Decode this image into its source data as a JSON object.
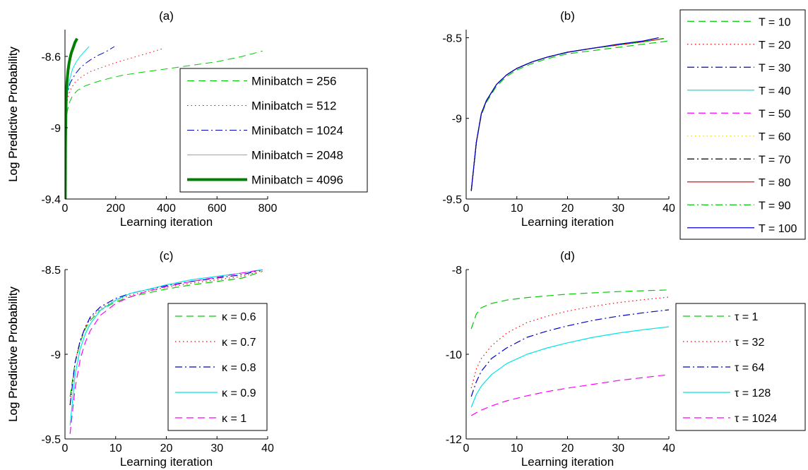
{
  "chart_data": [
    {
      "panel": "(a)",
      "type": "line",
      "title": "(a)",
      "xlabel": "Learning iteration",
      "ylabel": "Log Predictive Probability",
      "xlim": [
        0,
        800
      ],
      "ylim": [
        -9.4,
        -8.45
      ],
      "xticks": [
        0,
        200,
        400,
        600,
        800
      ],
      "yticks": [
        -9.4,
        -9,
        -8.6
      ],
      "ytick_labels": [
        "-9.4",
        "-9",
        "-8.6"
      ],
      "grid": false,
      "legend_position": "inside-right",
      "series": [
        {
          "name": "Minibatch = 256",
          "color": "#00cc00",
          "style": "dashed",
          "width": 1,
          "x": [
            1,
            5,
            10,
            20,
            30,
            50,
            80,
            120,
            170,
            230,
            300,
            400,
            500,
            600,
            700,
            780
          ],
          "y": [
            -9.05,
            -8.95,
            -8.9,
            -8.85,
            -8.82,
            -8.79,
            -8.765,
            -8.745,
            -8.725,
            -8.705,
            -8.69,
            -8.67,
            -8.65,
            -8.63,
            -8.6,
            -8.57
          ]
        },
        {
          "name": "Minibatch = 512",
          "color": "#ff0000",
          "style": "dotted",
          "width": 1,
          "x": [
            1,
            5,
            10,
            20,
            40,
            70,
            100,
            150,
            200,
            260,
            320,
            390
          ],
          "y": [
            -9.0,
            -8.9,
            -8.84,
            -8.79,
            -8.745,
            -8.71,
            -8.685,
            -8.66,
            -8.635,
            -8.61,
            -8.585,
            -8.555
          ]
        },
        {
          "name": "Minibatch = 1024",
          "color": "#0000cc",
          "style": "dashdot",
          "width": 1,
          "x": [
            1,
            5,
            10,
            20,
            40,
            60,
            80,
            100,
            130,
            160,
            195
          ],
          "y": [
            -9.0,
            -8.88,
            -8.81,
            -8.75,
            -8.7,
            -8.665,
            -8.64,
            -8.62,
            -8.595,
            -8.575,
            -8.545
          ]
        },
        {
          "name": "Minibatch = 2048",
          "color": "#00e5e5",
          "style": "solid",
          "width": 1,
          "x": [
            1,
            3,
            6,
            10,
            20,
            30,
            45,
            60,
            75,
            95
          ],
          "y": [
            -9.2,
            -9.0,
            -8.88,
            -8.8,
            -8.72,
            -8.67,
            -8.63,
            -8.6,
            -8.575,
            -8.545
          ]
        },
        {
          "name": "Minibatch = 4096",
          "color": "#008000",
          "style": "solid",
          "width": 4,
          "x": [
            1,
            2,
            3,
            5,
            8,
            12,
            16,
            20,
            25,
            30,
            35,
            40,
            48
          ],
          "y": [
            -9.4,
            -9.1,
            -8.95,
            -8.82,
            -8.74,
            -8.68,
            -8.64,
            -8.61,
            -8.58,
            -8.56,
            -8.54,
            -8.52,
            -8.5
          ]
        }
      ]
    },
    {
      "panel": "(b)",
      "type": "line",
      "title": "(b)",
      "xlabel": "Learning iteration",
      "ylabel": "Log Predictive Probability",
      "xlim": [
        0,
        40
      ],
      "ylim": [
        -9.5,
        -8.45
      ],
      "xticks": [
        0,
        10,
        20,
        30,
        40
      ],
      "yticks": [
        -9.5,
        -9,
        -8.5
      ],
      "ytick_labels": [
        "-9.5",
        "-9",
        "-8.5"
      ],
      "grid": false,
      "legend_position": "outside-right",
      "series": [
        {
          "name": "T = 10",
          "color": "#00cc00",
          "style": "dashed",
          "x": [
            1,
            2,
            3,
            4,
            6,
            8,
            10,
            13,
            16,
            20,
            25,
            30,
            35,
            40
          ],
          "y": [
            -9.45,
            -9.15,
            -8.98,
            -8.9,
            -8.8,
            -8.74,
            -8.7,
            -8.66,
            -8.63,
            -8.6,
            -8.58,
            -8.56,
            -8.54,
            -8.52
          ]
        },
        {
          "name": "T = 20",
          "color": "#ff0000",
          "style": "dotted",
          "x": [
            1,
            2,
            3,
            4,
            6,
            8,
            10,
            13,
            16,
            20,
            25,
            30,
            35,
            39
          ],
          "y": [
            -9.45,
            -9.15,
            -8.97,
            -8.89,
            -8.79,
            -8.73,
            -8.69,
            -8.65,
            -8.62,
            -8.59,
            -8.565,
            -8.545,
            -8.525,
            -8.505
          ]
        },
        {
          "name": "T = 30",
          "color": "#0000cc",
          "style": "dashdot",
          "x": [
            1,
            2,
            3,
            4,
            6,
            8,
            10,
            13,
            16,
            20,
            25,
            30,
            35,
            39
          ],
          "y": [
            -9.45,
            -9.15,
            -8.97,
            -8.89,
            -8.79,
            -8.73,
            -8.69,
            -8.65,
            -8.62,
            -8.59,
            -8.565,
            -8.545,
            -8.525,
            -8.505
          ]
        },
        {
          "name": "T = 40",
          "color": "#00e5e5",
          "style": "solid",
          "x": [
            1,
            2,
            3,
            4,
            6,
            8,
            10,
            13,
            16,
            20,
            25,
            30,
            35,
            39
          ],
          "y": [
            -9.45,
            -9.15,
            -8.97,
            -8.89,
            -8.79,
            -8.73,
            -8.69,
            -8.65,
            -8.62,
            -8.59,
            -8.565,
            -8.545,
            -8.525,
            -8.505
          ]
        },
        {
          "name": "T = 50",
          "color": "#ff00ff",
          "style": "dashed",
          "x": [
            1,
            2,
            3,
            4,
            6,
            8,
            10,
            13,
            16,
            20,
            25,
            30,
            35,
            39
          ],
          "y": [
            -9.45,
            -9.15,
            -8.97,
            -8.89,
            -8.79,
            -8.73,
            -8.69,
            -8.65,
            -8.62,
            -8.59,
            -8.565,
            -8.545,
            -8.525,
            -8.505
          ]
        },
        {
          "name": "T = 60",
          "color": "#e5e500",
          "style": "dotted",
          "x": [
            1,
            2,
            3,
            4,
            6,
            8,
            10,
            13,
            16,
            20,
            25,
            30,
            35,
            39
          ],
          "y": [
            -9.45,
            -9.15,
            -8.97,
            -8.89,
            -8.79,
            -8.73,
            -8.69,
            -8.65,
            -8.62,
            -8.59,
            -8.565,
            -8.545,
            -8.525,
            -8.505
          ]
        },
        {
          "name": "T = 70",
          "color": "#000000",
          "style": "dashdot",
          "x": [
            1,
            2,
            3,
            4,
            6,
            8,
            10,
            13,
            16,
            20,
            25,
            30,
            35,
            39
          ],
          "y": [
            -9.45,
            -9.15,
            -8.97,
            -8.89,
            -8.79,
            -8.73,
            -8.69,
            -8.65,
            -8.62,
            -8.59,
            -8.565,
            -8.545,
            -8.525,
            -8.505
          ]
        },
        {
          "name": "T = 80",
          "color": "#ff0000",
          "style": "solid",
          "x": [
            1,
            2,
            3,
            4,
            6,
            8,
            10,
            13,
            16,
            20,
            25,
            30,
            35,
            39
          ],
          "y": [
            -9.45,
            -9.15,
            -8.97,
            -8.89,
            -8.79,
            -8.73,
            -8.69,
            -8.65,
            -8.62,
            -8.59,
            -8.565,
            -8.545,
            -8.525,
            -8.505
          ]
        },
        {
          "name": "T = 90",
          "color": "#00cc00",
          "style": "dashdot",
          "x": [
            1,
            2,
            3,
            4,
            6,
            8,
            10,
            13,
            16,
            20,
            25,
            30,
            35,
            39
          ],
          "y": [
            -9.45,
            -9.15,
            -8.97,
            -8.89,
            -8.79,
            -8.73,
            -8.69,
            -8.65,
            -8.62,
            -8.59,
            -8.565,
            -8.545,
            -8.525,
            -8.505
          ]
        },
        {
          "name": "T = 100",
          "color": "#0000cc",
          "style": "solid",
          "x": [
            1,
            2,
            3,
            4,
            6,
            8,
            10,
            13,
            16,
            20,
            25,
            30,
            35,
            38
          ],
          "y": [
            -9.45,
            -9.15,
            -8.97,
            -8.89,
            -8.79,
            -8.73,
            -8.69,
            -8.65,
            -8.62,
            -8.59,
            -8.565,
            -8.54,
            -8.52,
            -8.5
          ]
        }
      ]
    },
    {
      "panel": "(c)",
      "type": "line",
      "title": "(c)",
      "xlabel": "Learning iteration",
      "ylabel": "Log Predictive Probability",
      "xlim": [
        0,
        40
      ],
      "ylim": [
        -9.5,
        -8.5
      ],
      "xticks": [
        0,
        10,
        20,
        30,
        40
      ],
      "yticks": [
        -9.5,
        -9,
        -8.5
      ],
      "ytick_labels": [
        "-9.5",
        "-9",
        "-8.5"
      ],
      "grid": false,
      "legend_position": "inside-right",
      "series": [
        {
          "name": "κ = 0.6",
          "color": "#00cc00",
          "style": "dashed",
          "x": [
            1,
            2,
            3,
            4,
            5,
            7,
            10,
            13,
            16,
            20,
            25,
            30,
            35,
            39
          ],
          "y": [
            -9.25,
            -9.05,
            -8.93,
            -8.85,
            -8.8,
            -8.74,
            -8.69,
            -8.66,
            -8.64,
            -8.615,
            -8.59,
            -8.57,
            -8.55,
            -8.51
          ]
        },
        {
          "name": "κ = 0.7",
          "color": "#ff0000",
          "style": "dotted",
          "x": [
            1,
            2,
            3,
            4,
            5,
            7,
            10,
            13,
            16,
            20,
            25,
            30,
            35,
            39
          ],
          "y": [
            -9.3,
            -9.05,
            -8.92,
            -8.84,
            -8.79,
            -8.73,
            -8.68,
            -8.65,
            -8.63,
            -8.605,
            -8.58,
            -8.56,
            -8.54,
            -8.505
          ]
        },
        {
          "name": "κ = 0.8",
          "color": "#0000cc",
          "style": "dashdot",
          "x": [
            1,
            2,
            3,
            4,
            5,
            7,
            10,
            13,
            16,
            20,
            25,
            30,
            35,
            39
          ],
          "y": [
            -9.3,
            -9.05,
            -8.92,
            -8.84,
            -8.78,
            -8.72,
            -8.67,
            -8.64,
            -8.62,
            -8.595,
            -8.57,
            -8.55,
            -8.53,
            -8.5
          ]
        },
        {
          "name": "κ = 0.9",
          "color": "#00e5e5",
          "style": "solid",
          "x": [
            1,
            2,
            3,
            4,
            5,
            7,
            10,
            13,
            16,
            20,
            25,
            30,
            35,
            39
          ],
          "y": [
            -9.42,
            -9.12,
            -8.97,
            -8.88,
            -8.82,
            -8.74,
            -8.68,
            -8.64,
            -8.62,
            -8.59,
            -8.56,
            -8.54,
            -8.52,
            -8.5
          ]
        },
        {
          "name": "κ = 1",
          "color": "#ff00ff",
          "style": "dashed",
          "x": [
            1,
            2,
            3,
            4,
            5,
            7,
            10,
            13,
            16,
            20,
            25,
            30,
            35,
            39
          ],
          "y": [
            -9.47,
            -9.2,
            -9.03,
            -8.93,
            -8.86,
            -8.77,
            -8.7,
            -8.66,
            -8.63,
            -8.6,
            -8.57,
            -8.545,
            -8.52,
            -8.5
          ]
        }
      ]
    },
    {
      "panel": "(d)",
      "type": "line",
      "title": "(d)",
      "xlabel": "Learning iteration",
      "ylabel": "Log Predictive Probability",
      "xlim": [
        0,
        40
      ],
      "ylim": [
        -12,
        -8
      ],
      "xticks": [
        0,
        10,
        20,
        30,
        40
      ],
      "yticks": [
        -12,
        -10,
        -8
      ],
      "ytick_labels": [
        "-12",
        "-10",
        "-8"
      ],
      "grid": false,
      "legend_position": "outside-right",
      "series": [
        {
          "name": "τ = 1",
          "color": "#00cc00",
          "style": "dashed",
          "x": [
            1,
            2,
            3,
            5,
            8,
            12,
            16,
            20,
            25,
            30,
            35,
            40
          ],
          "y": [
            -9.4,
            -9.05,
            -8.9,
            -8.8,
            -8.72,
            -8.66,
            -8.62,
            -8.58,
            -8.55,
            -8.52,
            -8.5,
            -8.48
          ]
        },
        {
          "name": "τ = 32",
          "color": "#ff0000",
          "style": "dotted",
          "x": [
            1,
            2,
            3,
            5,
            8,
            12,
            16,
            20,
            25,
            30,
            35,
            40
          ],
          "y": [
            -10.8,
            -10.35,
            -10.1,
            -9.8,
            -9.5,
            -9.25,
            -9.1,
            -8.98,
            -8.87,
            -8.78,
            -8.71,
            -8.65
          ]
        },
        {
          "name": "τ = 64",
          "color": "#0000cc",
          "style": "dashdot",
          "x": [
            1,
            2,
            3,
            5,
            8,
            12,
            16,
            20,
            25,
            30,
            35,
            40
          ],
          "y": [
            -11.0,
            -10.65,
            -10.4,
            -10.1,
            -9.85,
            -9.6,
            -9.45,
            -9.33,
            -9.2,
            -9.1,
            -9.02,
            -8.95
          ]
        },
        {
          "name": "τ = 128",
          "color": "#00e5e5",
          "style": "solid",
          "x": [
            1,
            2,
            3,
            5,
            8,
            12,
            16,
            20,
            25,
            30,
            35,
            40
          ],
          "y": [
            -11.25,
            -10.95,
            -10.75,
            -10.48,
            -10.22,
            -10.0,
            -9.85,
            -9.73,
            -9.6,
            -9.5,
            -9.42,
            -9.35
          ]
        },
        {
          "name": "τ = 1024",
          "color": "#ff00ff",
          "style": "dashed",
          "x": [
            1,
            2,
            3,
            5,
            8,
            12,
            16,
            20,
            25,
            30,
            35,
            40
          ],
          "y": [
            -11.45,
            -11.38,
            -11.32,
            -11.22,
            -11.1,
            -10.98,
            -10.88,
            -10.8,
            -10.71,
            -10.62,
            -10.55,
            -10.48
          ]
        }
      ]
    }
  ]
}
